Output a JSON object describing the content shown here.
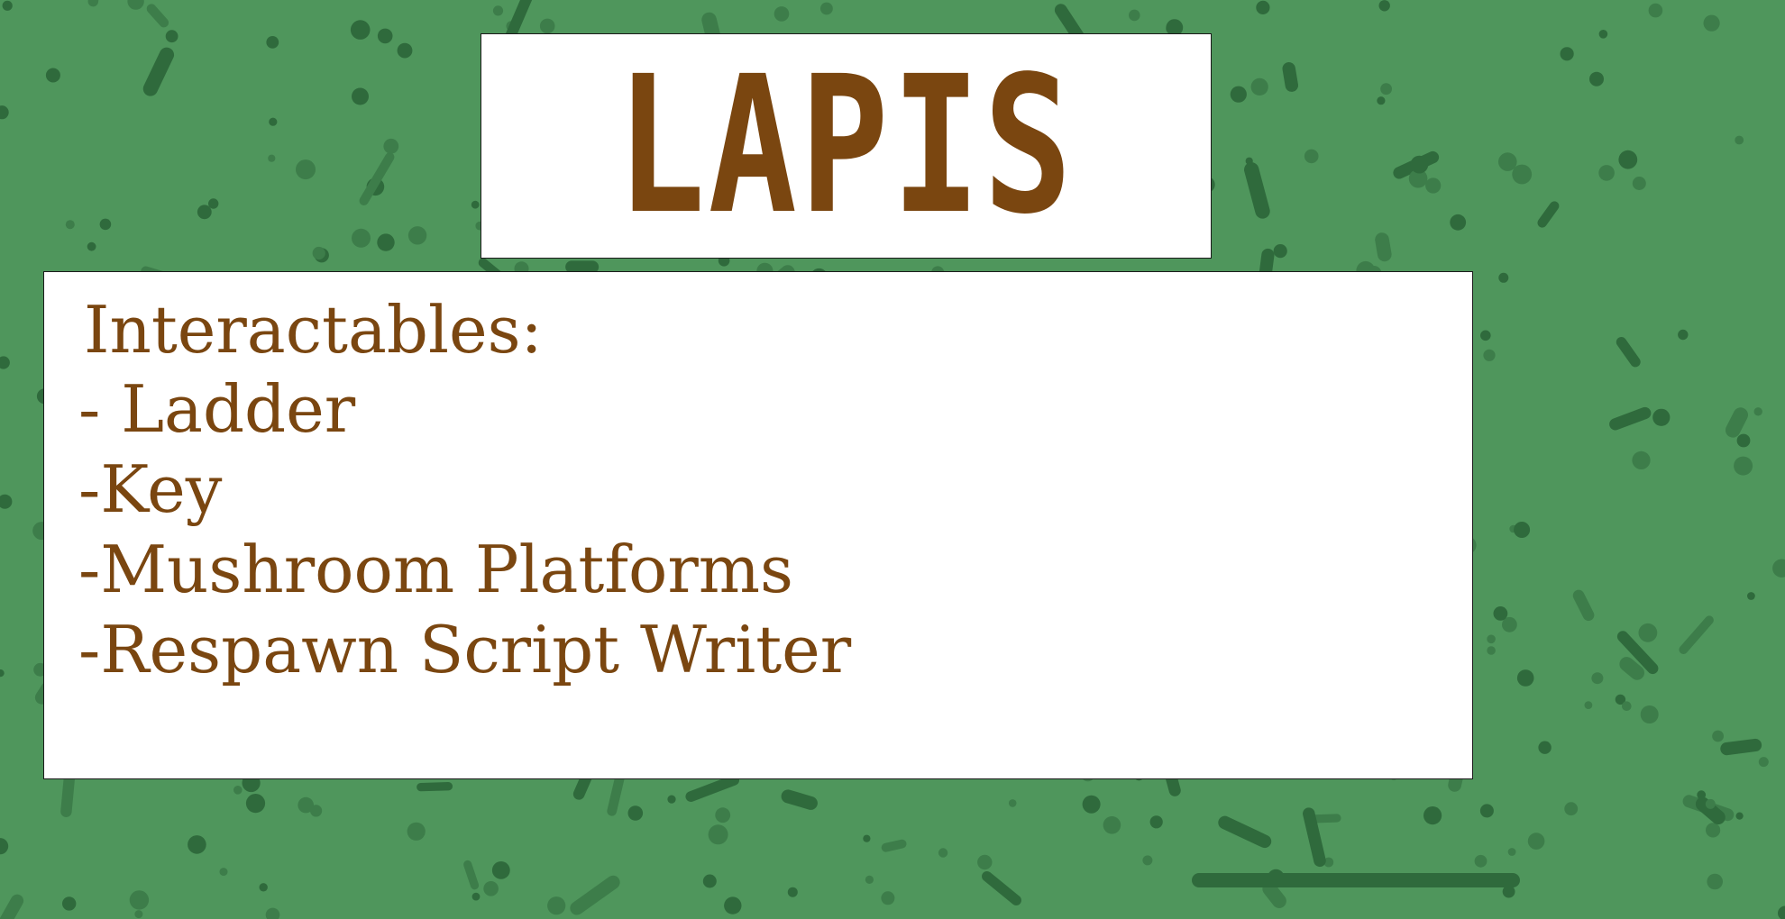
{
  "slide": {
    "title": "LAPIS",
    "heading": "Interactables:",
    "items": [
      "- Ladder",
      "-Key",
      "-Mushroom Platforms",
      "-Respawn Script Writer"
    ]
  },
  "colors": {
    "background": "#4f965c",
    "spots": "#2f6a3c",
    "text": "#7a4610",
    "panel": "#ffffff"
  }
}
